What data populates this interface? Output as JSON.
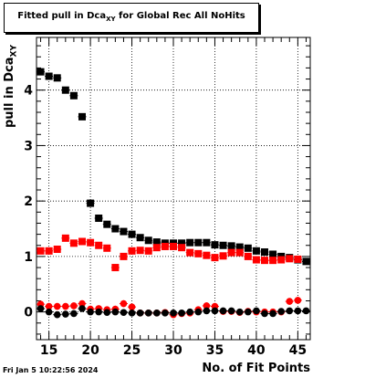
{
  "timestamp": "Fri Jan  5 10:22:56 2024",
  "chart_data": {
    "type": "scatter",
    "title_main": "Fitted pull in Dca",
    "title_sub": "XY",
    "title_rest": " for Global Rec All NoHits",
    "xlabel": "No. of Fit Points",
    "ylabel_main": "pull in Dca",
    "ylabel_sub": "XY",
    "xlim": [
      13.5,
      46.5
    ],
    "ylim": [
      -0.5,
      4.95
    ],
    "xticks": [
      15,
      20,
      25,
      30,
      35,
      40,
      45
    ],
    "yticks": [
      0,
      1,
      2,
      3,
      4
    ],
    "grid": true,
    "series": [
      {
        "marker": "square",
        "color": "#000000",
        "x": [
          14,
          15,
          16,
          17,
          18,
          19,
          20,
          21,
          22,
          23,
          24,
          25,
          26,
          27,
          28,
          29,
          30,
          31,
          32,
          33,
          34,
          35,
          36,
          37,
          38,
          39,
          40,
          41,
          42,
          43,
          44,
          45,
          46
        ],
        "y": [
          4.33,
          4.25,
          4.22,
          4.0,
          3.9,
          3.52,
          1.96,
          1.69,
          1.58,
          1.5,
          1.45,
          1.4,
          1.34,
          1.29,
          1.26,
          1.24,
          1.24,
          1.24,
          1.25,
          1.25,
          1.25,
          1.21,
          1.2,
          1.19,
          1.17,
          1.15,
          1.1,
          1.08,
          1.04,
          1.0,
          0.98,
          0.94,
          0.91
        ],
        "yerr": [
          0.03,
          0.03,
          0.03,
          0.03,
          0.03,
          0.03,
          0.03,
          0.02,
          0.02,
          0.02,
          0.02,
          0.02,
          0.02,
          0.02,
          0.02,
          0.02,
          0.02,
          0.02,
          0.02,
          0.02,
          0.02,
          0.02,
          0.02,
          0.02,
          0.02,
          0.02,
          0.02,
          0.02,
          0.02,
          0.02,
          0.02,
          0.02,
          0.02
        ]
      },
      {
        "marker": "square",
        "color": "#ff0000",
        "x": [
          14,
          15,
          16,
          17,
          18,
          19,
          20,
          21,
          22,
          23,
          24,
          25,
          26,
          27,
          28,
          29,
          30,
          31,
          32,
          33,
          34,
          35,
          36,
          37,
          38,
          39,
          40,
          41,
          42,
          43,
          44,
          45,
          46
        ],
        "y": [
          1.1,
          1.1,
          1.13,
          1.33,
          1.24,
          1.27,
          1.25,
          1.2,
          1.15,
          0.8,
          1.0,
          1.1,
          1.11,
          1.1,
          1.16,
          1.18,
          1.18,
          1.16,
          1.07,
          1.05,
          1.02,
          0.98,
          1.01,
          1.07,
          1.07,
          1.0,
          0.94,
          0.93,
          0.93,
          0.94,
          0.96,
          0.95,
          null
        ],
        "yerr": [
          0.06,
          0.06,
          0.06,
          0.06,
          0.06,
          0.06,
          0.06,
          0.06,
          0.06,
          0.06,
          0.06,
          0.06,
          0.06,
          0.06,
          0.06,
          0.06,
          0.06,
          0.06,
          0.06,
          0.06,
          0.06,
          0.06,
          0.06,
          0.06,
          0.06,
          0.06,
          0.06,
          0.06,
          0.06,
          0.06,
          0.06,
          0.06,
          null
        ]
      },
      {
        "marker": "circle",
        "color": "#ff0000",
        "x": [
          14,
          15,
          16,
          17,
          18,
          19,
          20,
          21,
          22,
          23,
          24,
          25,
          26,
          27,
          28,
          29,
          30,
          31,
          32,
          33,
          34,
          35,
          36,
          37,
          38,
          39,
          40,
          41,
          42,
          43,
          44,
          45,
          46
        ],
        "y": [
          0.14,
          0.1,
          0.1,
          0.1,
          0.11,
          0.15,
          0.05,
          0.06,
          0.04,
          0.05,
          0.15,
          0.09,
          -0.02,
          -0.02,
          -0.02,
          -0.01,
          -0.05,
          -0.03,
          -0.02,
          0.04,
          0.11,
          0.1,
          0.01,
          0.01,
          -0.01,
          0.01,
          0.0,
          0.0,
          0.0,
          0.0,
          0.19,
          0.21,
          null
        ],
        "yerr": [
          0.06,
          0.06,
          0.06,
          0.06,
          0.06,
          0.06,
          0.06,
          0.06,
          0.06,
          0.06,
          0.06,
          0.06,
          0.06,
          0.06,
          0.06,
          0.06,
          0.06,
          0.06,
          0.06,
          0.06,
          0.06,
          0.06,
          0.06,
          0.06,
          0.06,
          0.06,
          0.06,
          0.06,
          0.06,
          0.06,
          0.06,
          0.06,
          null
        ]
      },
      {
        "marker": "circle",
        "color": "#000000",
        "x": [
          14,
          15,
          16,
          17,
          18,
          19,
          20,
          21,
          22,
          23,
          24,
          25,
          26,
          27,
          28,
          29,
          30,
          31,
          32,
          33,
          34,
          35,
          36,
          37,
          38,
          39,
          40,
          41,
          42,
          43,
          44,
          45,
          46
        ],
        "y": [
          0.06,
          0.0,
          -0.05,
          -0.04,
          -0.03,
          0.06,
          0.0,
          0.0,
          -0.01,
          0.0,
          -0.01,
          -0.02,
          -0.02,
          -0.02,
          -0.02,
          -0.02,
          -0.02,
          -0.02,
          0.0,
          0.0,
          0.02,
          0.02,
          0.02,
          0.02,
          0.0,
          0.0,
          0.02,
          -0.03,
          -0.03,
          0.01,
          0.02,
          0.02,
          0.02
        ],
        "yerr": [
          0.02,
          0.02,
          0.02,
          0.02,
          0.02,
          0.02,
          0.02,
          0.02,
          0.02,
          0.02,
          0.02,
          0.02,
          0.02,
          0.02,
          0.02,
          0.02,
          0.02,
          0.02,
          0.02,
          0.02,
          0.02,
          0.02,
          0.02,
          0.02,
          0.02,
          0.02,
          0.02,
          0.02,
          0.02,
          0.02,
          0.02,
          0.02,
          0.02
        ]
      }
    ]
  }
}
